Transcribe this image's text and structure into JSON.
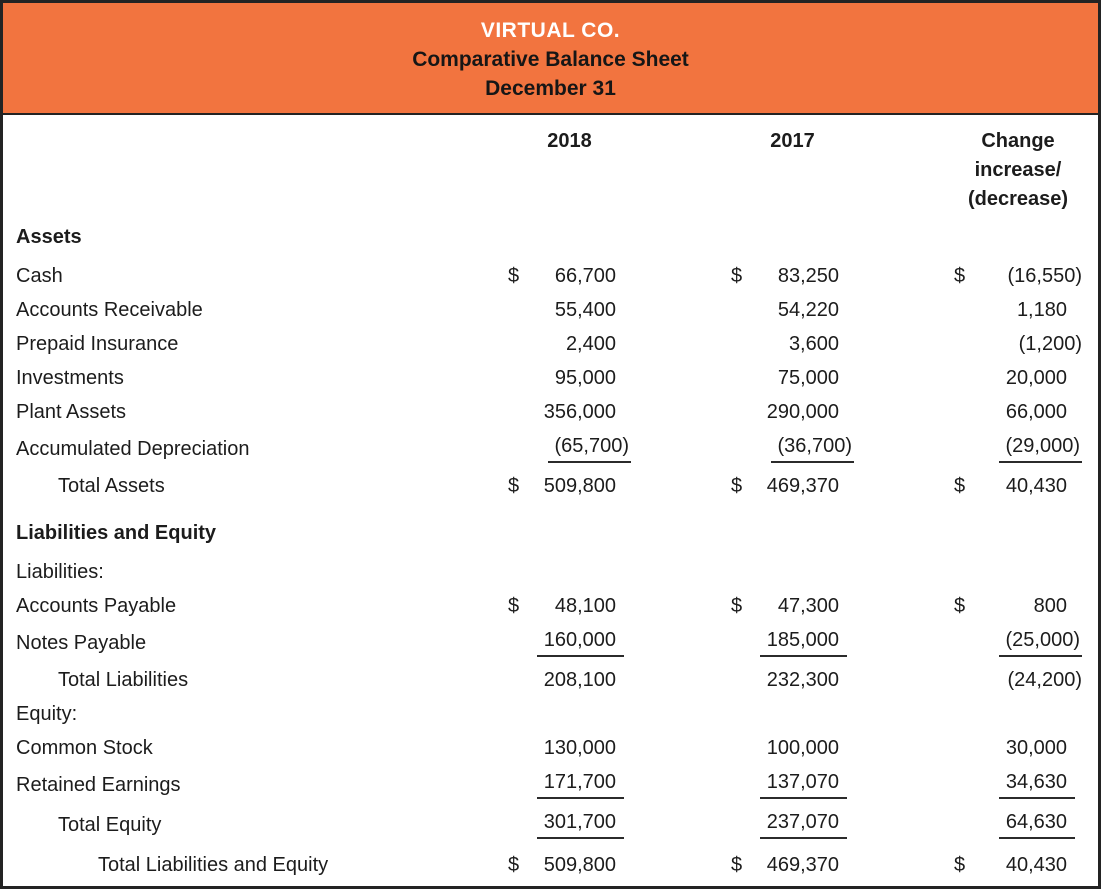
{
  "header": {
    "company": "VIRTUAL CO.",
    "title": "Comparative Balance Sheet",
    "date": "December 31",
    "band_color": "#f2743f",
    "company_text_color": "#ffffff",
    "text_color": "#1c1c1c"
  },
  "columns": [
    {
      "label": "2018"
    },
    {
      "label": "2017"
    },
    {
      "label": "Change",
      "sub": [
        "increase/",
        "(decrease)"
      ]
    }
  ],
  "table": {
    "rows": [
      {
        "type": "section",
        "bold": true,
        "label": "Assets"
      },
      {
        "type": "item",
        "label": "Cash",
        "cells": [
          {
            "cur": "$",
            "val": "66,700"
          },
          {
            "cur": "$",
            "val": "83,250"
          },
          {
            "cur": "$",
            "val": "(16,550)"
          }
        ]
      },
      {
        "type": "item",
        "label": "Accounts Receivable",
        "cells": [
          {
            "cur": "",
            "val": "55,400"
          },
          {
            "cur": "",
            "val": "54,220"
          },
          {
            "cur": "",
            "val": "1,180"
          }
        ]
      },
      {
        "type": "item",
        "label": "Prepaid Insurance",
        "cells": [
          {
            "cur": "",
            "val": "2,400"
          },
          {
            "cur": "",
            "val": "3,600"
          },
          {
            "cur": "",
            "val": "(1,200)"
          }
        ]
      },
      {
        "type": "item",
        "label": "Investments",
        "cells": [
          {
            "cur": "",
            "val": "95,000"
          },
          {
            "cur": "",
            "val": "75,000"
          },
          {
            "cur": "",
            "val": "20,000"
          }
        ]
      },
      {
        "type": "item",
        "label": "Plant Assets",
        "cells": [
          {
            "cur": "",
            "val": "356,000"
          },
          {
            "cur": "",
            "val": "290,000"
          },
          {
            "cur": "",
            "val": "66,000"
          }
        ]
      },
      {
        "type": "item",
        "underline": true,
        "label": "Accumulated Depreciation",
        "cells": [
          {
            "cur": "",
            "val": "(65,700)"
          },
          {
            "cur": "",
            "val": "(36,700)"
          },
          {
            "cur": "",
            "val": "(29,000)"
          }
        ]
      },
      {
        "type": "item",
        "indent": 1,
        "label": "Total Assets",
        "cells": [
          {
            "cur": "$",
            "val": "509,800"
          },
          {
            "cur": "$",
            "val": "469,370"
          },
          {
            "cur": "$",
            "val": "40,430"
          }
        ]
      },
      {
        "type": "section",
        "bold": true,
        "label": "Liabilities and Equity"
      },
      {
        "type": "item",
        "label": "Liabilities:"
      },
      {
        "type": "item",
        "label": "Accounts Payable",
        "cells": [
          {
            "cur": "$",
            "val": "48,100"
          },
          {
            "cur": "$",
            "val": "47,300"
          },
          {
            "cur": "$",
            "val": "800"
          }
        ]
      },
      {
        "type": "item",
        "underline": true,
        "label": "Notes Payable",
        "cells": [
          {
            "cur": "",
            "val": "160,000"
          },
          {
            "cur": "",
            "val": "185,000"
          },
          {
            "cur": "",
            "val": "(25,000)"
          }
        ]
      },
      {
        "type": "item",
        "indent": 1,
        "label": "Total Liabilities",
        "cells": [
          {
            "cur": "",
            "val": "208,100"
          },
          {
            "cur": "",
            "val": "232,300"
          },
          {
            "cur": "",
            "val": "(24,200)"
          }
        ]
      },
      {
        "type": "item",
        "label": "Equity:"
      },
      {
        "type": "item",
        "label": "Common Stock",
        "cells": [
          {
            "cur": "",
            "val": "130,000"
          },
          {
            "cur": "",
            "val": "100,000"
          },
          {
            "cur": "",
            "val": "30,000"
          }
        ]
      },
      {
        "type": "item",
        "underline": true,
        "label": "Retained Earnings",
        "cells": [
          {
            "cur": "",
            "val": "171,700"
          },
          {
            "cur": "",
            "val": "137,070"
          },
          {
            "cur": "",
            "val": "34,630"
          }
        ]
      },
      {
        "type": "item",
        "indent": 1,
        "underline": true,
        "label": "Total Equity",
        "cells": [
          {
            "cur": "",
            "val": "301,700"
          },
          {
            "cur": "",
            "val": "237,070"
          },
          {
            "cur": "",
            "val": "64,630"
          }
        ]
      },
      {
        "type": "grand",
        "indent": 2,
        "label": "Total Liabilities and Equity",
        "cells": [
          {
            "cur": "$",
            "val": "509,800"
          },
          {
            "cur": "$",
            "val": "469,370"
          },
          {
            "cur": "$",
            "val": "40,430"
          }
        ]
      }
    ]
  }
}
